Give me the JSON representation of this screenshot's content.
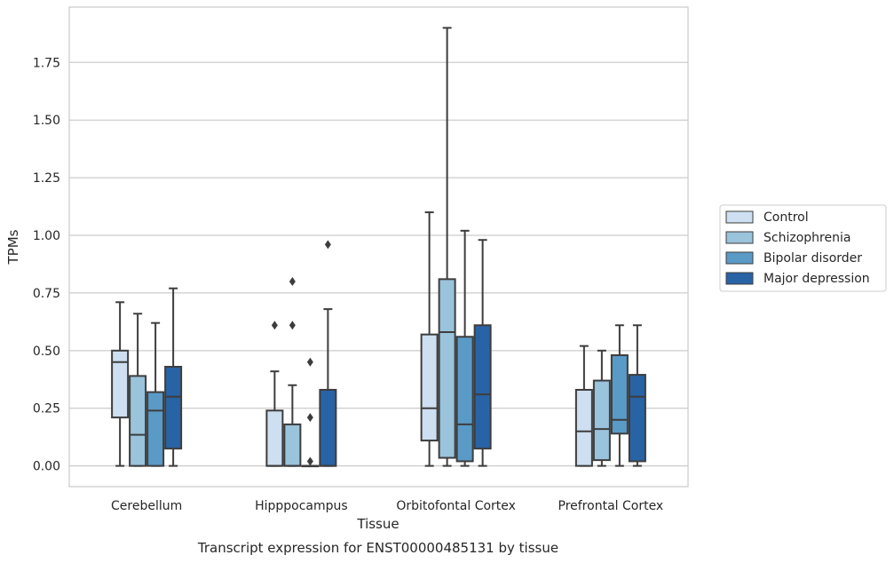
{
  "chart_data": {
    "type": "box",
    "title": "",
    "xlabel": "Tissue",
    "ylabel": "TPMs",
    "caption": "Transcript expression for ENST00000485131 by tissue",
    "categories": [
      "Cerebellum",
      "Hipppocampus",
      "Orbitofontal Cortex",
      "Prefrontal Cortex"
    ],
    "ylim": [
      -0.09,
      1.99
    ],
    "yticks": [
      0.0,
      0.25,
      0.5,
      0.75,
      1.0,
      1.25,
      1.5,
      1.75
    ],
    "ytick_labels": [
      "0.00",
      "0.25",
      "0.50",
      "0.75",
      "1.00",
      "1.25",
      "1.50",
      "1.75"
    ],
    "grid": true,
    "legend_placement": "right",
    "series": [
      {
        "name": "Control",
        "color": "#cddff0",
        "boxes": [
          {
            "whislo": 0.0,
            "q1": 0.21,
            "med": 0.45,
            "q3": 0.5,
            "whishi": 0.71,
            "fliers": []
          },
          {
            "whislo": 0.0,
            "q1": 0.0,
            "med": 0.0,
            "q3": 0.24,
            "whishi": 0.41,
            "fliers": [
              0.61
            ]
          },
          {
            "whislo": 0.0,
            "q1": 0.11,
            "med": 0.25,
            "q3": 0.57,
            "whishi": 1.1,
            "fliers": []
          },
          {
            "whislo": 0.0,
            "q1": 0.0,
            "med": 0.15,
            "q3": 0.33,
            "whishi": 0.52,
            "fliers": []
          }
        ]
      },
      {
        "name": "Schizophrenia",
        "color": "#9ac3dc",
        "boxes": [
          {
            "whislo": 0.0,
            "q1": 0.0,
            "med": 0.135,
            "q3": 0.39,
            "whishi": 0.66,
            "fliers": []
          },
          {
            "whislo": 0.0,
            "q1": 0.0,
            "med": 0.0,
            "q3": 0.18,
            "whishi": 0.35,
            "fliers": [
              0.61,
              0.8
            ]
          },
          {
            "whislo": 0.0,
            "q1": 0.035,
            "med": 0.58,
            "q3": 0.81,
            "whishi": 1.9,
            "fliers": []
          },
          {
            "whislo": 0.0,
            "q1": 0.025,
            "med": 0.16,
            "q3": 0.37,
            "whishi": 0.5,
            "fliers": []
          }
        ]
      },
      {
        "name": "Bipolar disorder",
        "color": "#5a9ac7",
        "boxes": [
          {
            "whislo": 0.0,
            "q1": 0.0,
            "med": 0.24,
            "q3": 0.32,
            "whishi": 0.62,
            "fliers": []
          },
          {
            "whislo": 0.0,
            "q1": 0.0,
            "med": 0.0,
            "q3": 0.0,
            "whishi": 0.0,
            "fliers": [
              0.02,
              0.21,
              0.45
            ]
          },
          {
            "whislo": 0.0,
            "q1": 0.02,
            "med": 0.18,
            "q3": 0.56,
            "whishi": 1.02,
            "fliers": []
          },
          {
            "whislo": 0.0,
            "q1": 0.14,
            "med": 0.2,
            "q3": 0.48,
            "whishi": 0.61,
            "fliers": []
          }
        ]
      },
      {
        "name": "Major depression",
        "color": "#2863a6",
        "boxes": [
          {
            "whislo": 0.0,
            "q1": 0.075,
            "med": 0.3,
            "q3": 0.43,
            "whishi": 0.77,
            "fliers": []
          },
          {
            "whislo": 0.0,
            "q1": 0.0,
            "med": 0.0,
            "q3": 0.33,
            "whishi": 0.68,
            "fliers": [
              0.96
            ]
          },
          {
            "whislo": 0.0,
            "q1": 0.075,
            "med": 0.31,
            "q3": 0.61,
            "whishi": 0.98,
            "fliers": []
          },
          {
            "whislo": 0.0,
            "q1": 0.02,
            "med": 0.3,
            "q3": 0.395,
            "whishi": 0.61,
            "fliers": []
          }
        ]
      }
    ]
  }
}
